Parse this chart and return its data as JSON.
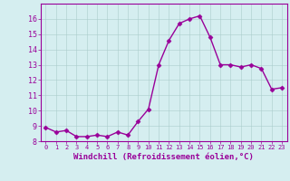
{
  "x": [
    0,
    1,
    2,
    3,
    4,
    5,
    6,
    7,
    8,
    9,
    10,
    11,
    12,
    13,
    14,
    15,
    16,
    17,
    18,
    19,
    20,
    21,
    22,
    23
  ],
  "y": [
    8.9,
    8.6,
    8.7,
    8.3,
    8.3,
    8.4,
    8.3,
    8.6,
    8.4,
    9.3,
    10.1,
    13.0,
    14.6,
    15.7,
    16.0,
    16.2,
    14.8,
    13.0,
    13.0,
    12.85,
    13.0,
    12.75,
    11.4,
    11.5
  ],
  "line_color": "#990099",
  "marker": "D",
  "markersize": 2.5,
  "linewidth": 1.0,
  "xlabel": "Windchill (Refroidissement éolien,°C)",
  "xlabel_fontsize": 6.5,
  "xlim": [
    -0.5,
    23.5
  ],
  "ylim": [
    8,
    17
  ],
  "yticks": [
    8,
    9,
    10,
    11,
    12,
    13,
    14,
    15,
    16
  ],
  "xticks": [
    0,
    1,
    2,
    3,
    4,
    5,
    6,
    7,
    8,
    9,
    10,
    11,
    12,
    13,
    14,
    15,
    16,
    17,
    18,
    19,
    20,
    21,
    22,
    23
  ],
  "bg_color": "#d5eef0",
  "grid_color": "#aacccc",
  "tick_label_color": "#990099",
  "spine_color": "#990099"
}
